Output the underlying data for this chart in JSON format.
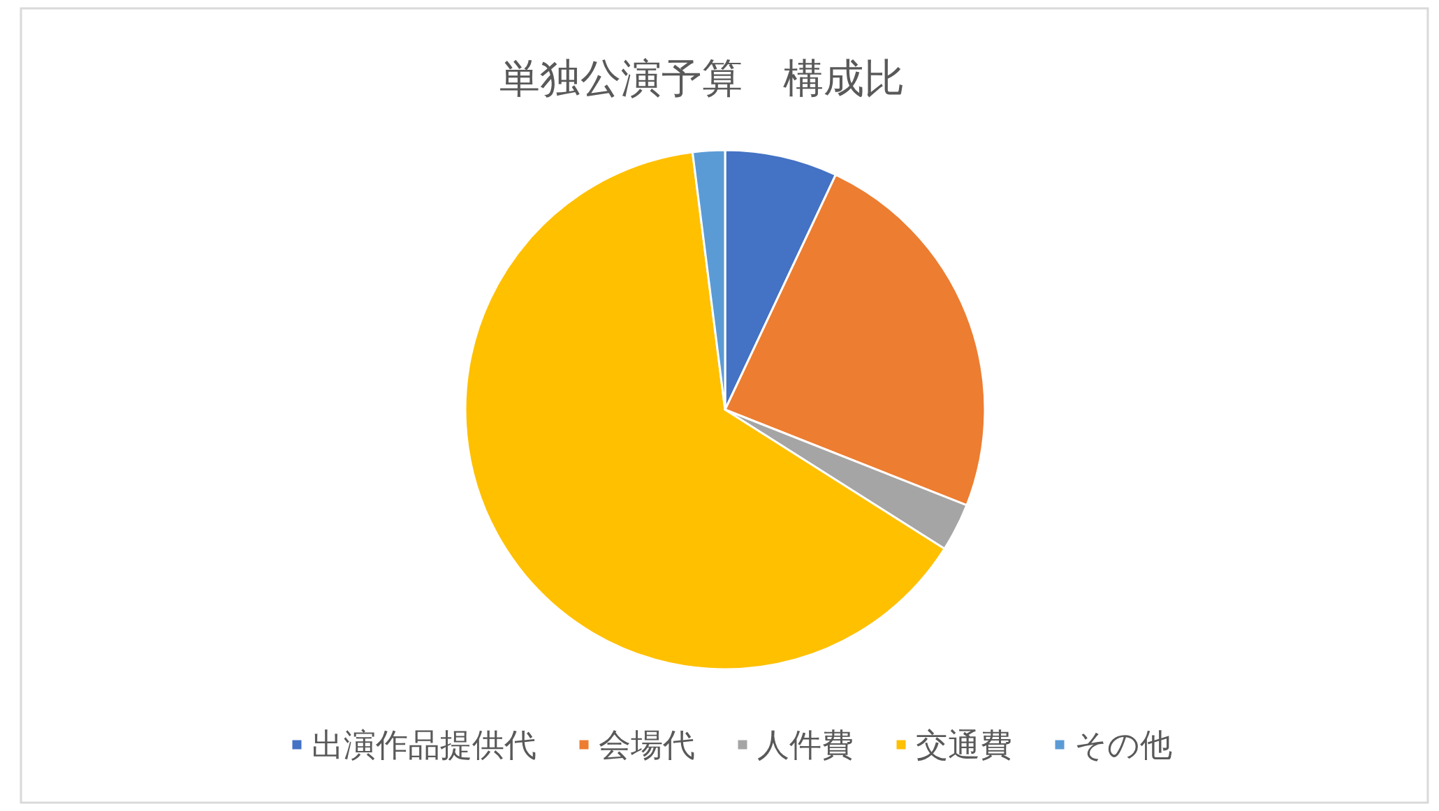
{
  "chart_data": {
    "type": "pie",
    "title": "単独公演予算　構成比",
    "categories": [
      "出演作品提供代",
      "会場代",
      "人件費",
      "交通費",
      "その他"
    ],
    "values": [
      7,
      24,
      3,
      64,
      2
    ],
    "colors": [
      "#4472c4",
      "#ed7d31",
      "#a5a5a5",
      "#ffc000",
      "#5b9bd5"
    ],
    "legend": "bottom"
  }
}
